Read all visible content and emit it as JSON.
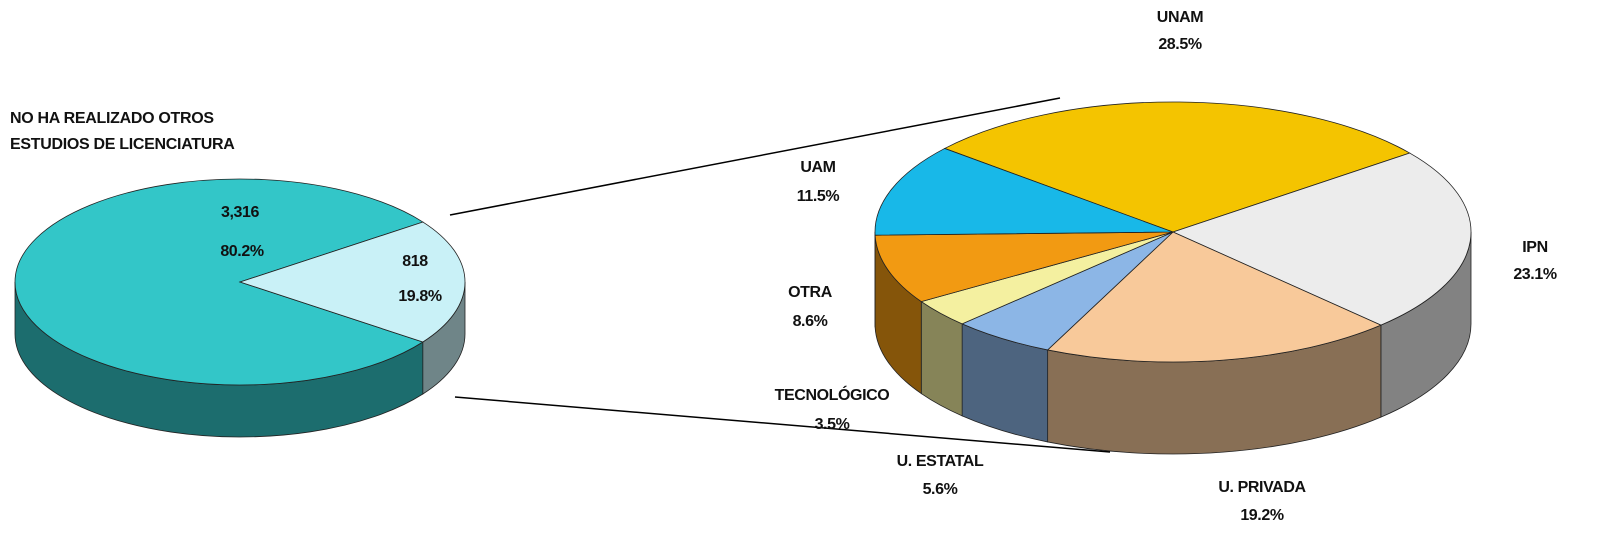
{
  "chart_data": [
    {
      "type": "pie",
      "categories": [
        "NO HA REALIZADO OTROS ESTUDIOS DE LICENCIATURA",
        null
      ],
      "values": [
        3316,
        818
      ],
      "value_labels": [
        "3,316",
        "818"
      ],
      "percents": [
        80.2,
        19.8
      ],
      "percent_labels": [
        "80.2%",
        "19.8%"
      ],
      "colors": [
        "#33c6c8",
        "#c9f1f7"
      ]
    },
    {
      "type": "pie",
      "categories": [
        "UNAM",
        "IPN",
        "U. PRIVADA",
        "U. ESTATAL",
        "TECNOLÓGICO",
        "OTRA",
        "UAM"
      ],
      "values": [
        28.5,
        23.1,
        19.2,
        5.6,
        3.5,
        8.6,
        11.5
      ],
      "value_labels": [
        "28.5%",
        "23.1%",
        "19.2%",
        "5.6%",
        "3.5%",
        "8.6%",
        "11.5%"
      ],
      "colors": [
        "#f4c400",
        "#ececec",
        "#f8c99a",
        "#8cb6e6",
        "#f4f0a0",
        "#f29a12",
        "#18b8e8"
      ]
    }
  ]
}
